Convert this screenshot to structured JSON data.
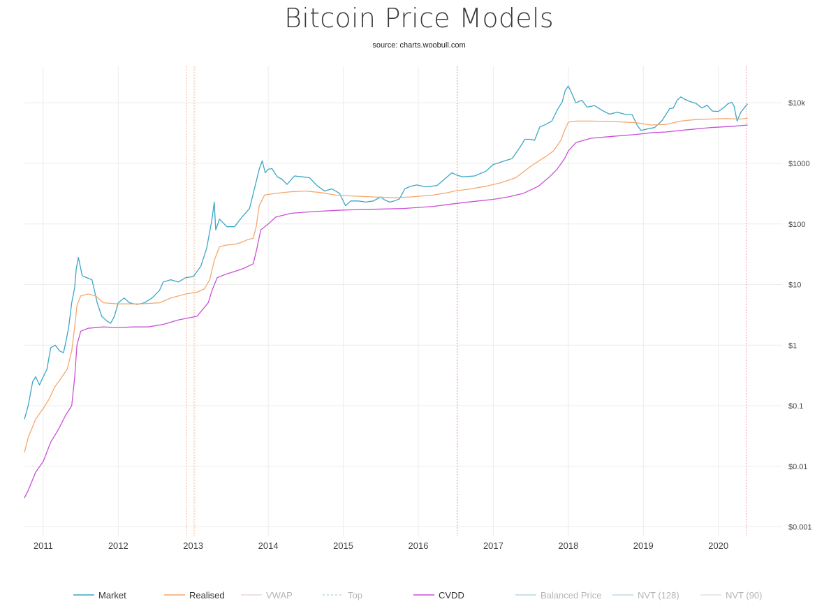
{
  "chart_data": {
    "type": "line",
    "title": "Bitcoin Price Models",
    "subtitle": "source: charts.woobull.com",
    "y_scale": "log",
    "ylim": [
      0.0007,
      40000
    ],
    "xlim": [
      2010.75,
      2020.85
    ],
    "grid": true,
    "legend_position": "bottom",
    "x_ticks": [
      {
        "value": 2011,
        "label": "2011"
      },
      {
        "value": 2012,
        "label": "2012"
      },
      {
        "value": 2013,
        "label": "2013"
      },
      {
        "value": 2014,
        "label": "2014"
      },
      {
        "value": 2015,
        "label": "2015"
      },
      {
        "value": 2016,
        "label": "2016"
      },
      {
        "value": 2017,
        "label": "2017"
      },
      {
        "value": 2018,
        "label": "2018"
      },
      {
        "value": 2019,
        "label": "2019"
      },
      {
        "value": 2020,
        "label": "2020"
      }
    ],
    "y_ticks": [
      {
        "value": 10000,
        "label": "$10k"
      },
      {
        "value": 1000,
        "label": "$1000"
      },
      {
        "value": 100,
        "label": "$100"
      },
      {
        "value": 10,
        "label": "$10"
      },
      {
        "value": 1,
        "label": "$1"
      },
      {
        "value": 0.1,
        "label": "$0.1"
      },
      {
        "value": 0.01,
        "label": "$0.01"
      },
      {
        "value": 0.001,
        "label": "$0.001"
      }
    ],
    "halving_markers": [
      {
        "x": 2012.91,
        "color": "#f5b995"
      },
      {
        "x": 2013.02,
        "color": "#f5c8a8"
      },
      {
        "x": 2016.52,
        "color": "#f08a8a"
      },
      {
        "x": 2020.37,
        "color": "#f0a0b4"
      }
    ],
    "series": [
      {
        "name": "Market",
        "color": "#3aa6c6",
        "style": "solid",
        "visible": true,
        "x": [
          2010.75,
          2010.8,
          2010.86,
          2010.9,
          2010.95,
          2011.0,
          2011.05,
          2011.1,
          2011.16,
          2011.22,
          2011.27,
          2011.3,
          2011.34,
          2011.38,
          2011.42,
          2011.44,
          2011.47,
          2011.52,
          2011.58,
          2011.65,
          2011.72,
          2011.78,
          2011.85,
          2011.9,
          2011.95,
          2012.0,
          2012.08,
          2012.15,
          2012.25,
          2012.35,
          2012.45,
          2012.55,
          2012.6,
          2012.7,
          2012.8,
          2012.9,
          2013.0,
          2013.1,
          2013.18,
          2013.25,
          2013.28,
          2013.3,
          2013.35,
          2013.45,
          2013.55,
          2013.65,
          2013.75,
          2013.82,
          2013.88,
          2013.92,
          2013.96,
          2014.0,
          2014.05,
          2014.12,
          2014.18,
          2014.25,
          2014.35,
          2014.45,
          2014.55,
          2014.65,
          2014.75,
          2014.85,
          2014.95,
          2015.03,
          2015.1,
          2015.2,
          2015.3,
          2015.4,
          2015.5,
          2015.55,
          2015.62,
          2015.68,
          2015.75,
          2015.82,
          2015.9,
          2015.98,
          2016.1,
          2016.25,
          2016.35,
          2016.45,
          2016.5,
          2016.55,
          2016.6,
          2016.75,
          2016.9,
          2017.0,
          2017.05,
          2017.15,
          2017.25,
          2017.35,
          2017.42,
          2017.5,
          2017.55,
          2017.62,
          2017.7,
          2017.78,
          2017.85,
          2017.92,
          2017.96,
          2018.0,
          2018.05,
          2018.1,
          2018.18,
          2018.25,
          2018.35,
          2018.45,
          2018.55,
          2018.65,
          2018.75,
          2018.85,
          2018.92,
          2018.97,
          2019.05,
          2019.15,
          2019.25,
          2019.35,
          2019.4,
          2019.45,
          2019.5,
          2019.55,
          2019.62,
          2019.7,
          2019.78,
          2019.85,
          2019.92,
          2020.0,
          2020.08,
          2020.13,
          2020.18,
          2020.21,
          2020.25,
          2020.3,
          2020.37,
          2020.39
        ],
        "y": [
          0.06,
          0.1,
          0.25,
          0.3,
          0.22,
          0.3,
          0.4,
          0.9,
          1.0,
          0.8,
          0.75,
          1.1,
          2.0,
          5.0,
          9.0,
          18.0,
          28.0,
          14.0,
          13.0,
          12.0,
          5.0,
          3.0,
          2.5,
          2.3,
          3.0,
          5.0,
          6.0,
          5.0,
          4.7,
          5.0,
          6.0,
          8.0,
          11.0,
          12.0,
          11.0,
          13.0,
          13.5,
          20.0,
          40.0,
          120.0,
          230.0,
          80.0,
          120.0,
          90.0,
          90.0,
          130.0,
          180.0,
          400.0,
          800.0,
          1100.0,
          700.0,
          800.0,
          820.0,
          600.0,
          550.0,
          450.0,
          620.0,
          600.0,
          580.0,
          430.0,
          350.0,
          380.0,
          320.0,
          200.0,
          240.0,
          240.0,
          230.0,
          240.0,
          280.0,
          250.0,
          230.0,
          240.0,
          260.0,
          380.0,
          420.0,
          440.0,
          410.0,
          430.0,
          550.0,
          700.0,
          650.0,
          620.0,
          600.0,
          620.0,
          740.0,
          960.0,
          1000.0,
          1100.0,
          1200.0,
          1800.0,
          2500.0,
          2500.0,
          2400.0,
          4000.0,
          4400.0,
          5000.0,
          7500.0,
          10500.0,
          16000.0,
          19000.0,
          14000.0,
          10000.0,
          11000.0,
          8500.0,
          9000.0,
          7500.0,
          6500.0,
          7000.0,
          6500.0,
          6400.0,
          4200.0,
          3500.0,
          3700.0,
          3900.0,
          5100.0,
          8000.0,
          8200.0,
          11000.0,
          12500.0,
          11500.0,
          10500.0,
          9800.0,
          8200.0,
          9100.0,
          7300.0,
          7200.0,
          8500.0,
          9700.0,
          10200.0,
          8800.0,
          5000.0,
          7000.0,
          9000.0,
          9600.0
        ]
      },
      {
        "name": "Realised",
        "color": "#f5a76e",
        "style": "solid",
        "visible": true,
        "x": [
          2010.75,
          2010.8,
          2010.9,
          2011.0,
          2011.08,
          2011.15,
          2011.25,
          2011.32,
          2011.38,
          2011.42,
          2011.45,
          2011.5,
          2011.6,
          2011.7,
          2011.8,
          2012.0,
          2012.3,
          2012.55,
          2012.7,
          2012.9,
          2013.05,
          2013.15,
          2013.22,
          2013.28,
          2013.35,
          2013.45,
          2013.55,
          2013.65,
          2013.72,
          2013.8,
          2013.84,
          2013.88,
          2013.95,
          2014.1,
          2014.3,
          2014.5,
          2014.7,
          2014.9,
          2015.1,
          2015.4,
          2015.7,
          2015.9,
          2016.2,
          2016.4,
          2016.48,
          2016.7,
          2016.9,
          2017.1,
          2017.3,
          2017.5,
          2017.7,
          2017.8,
          2017.9,
          2017.95,
          2018.0,
          2018.1,
          2018.3,
          2018.6,
          2018.9,
          2019.1,
          2019.3,
          2019.5,
          2019.7,
          2019.9,
          2020.1,
          2020.3,
          2020.39
        ],
        "y": [
          0.017,
          0.03,
          0.06,
          0.09,
          0.13,
          0.2,
          0.3,
          0.4,
          0.8,
          2.0,
          4.5,
          6.5,
          7.0,
          6.5,
          5.0,
          4.8,
          4.8,
          5.0,
          6.0,
          7.0,
          7.5,
          8.5,
          12.0,
          25.0,
          42.0,
          45.0,
          46.0,
          50.0,
          55.0,
          58.0,
          90.0,
          200.0,
          300.0,
          320.0,
          340.0,
          350.0,
          330.0,
          300.0,
          290.0,
          280.0,
          270.0,
          280.0,
          300.0,
          330.0,
          350.0,
          380.0,
          420.0,
          480.0,
          580.0,
          900.0,
          1300.0,
          1600.0,
          2400.0,
          3500.0,
          4800.0,
          5000.0,
          5000.0,
          4900.0,
          4700.0,
          4300.0,
          4400.0,
          5000.0,
          5300.0,
          5400.0,
          5500.0,
          5400.0,
          5600.0
        ]
      },
      {
        "name": "VWAP",
        "color": "#eed6d6",
        "style": "solid",
        "visible": false,
        "x": [],
        "y": []
      },
      {
        "name": "Top",
        "color": "#b8dcd4",
        "style": "dashed",
        "visible": false,
        "x": [],
        "y": []
      },
      {
        "name": "CVDD",
        "color": "#c850d6",
        "style": "solid",
        "visible": true,
        "x": [
          2010.75,
          2010.8,
          2010.9,
          2011.0,
          2011.1,
          2011.2,
          2011.3,
          2011.38,
          2011.42,
          2011.45,
          2011.5,
          2011.6,
          2011.8,
          2012.0,
          2012.2,
          2012.4,
          2012.6,
          2012.8,
          2013.05,
          2013.2,
          2013.25,
          2013.32,
          2013.45,
          2013.65,
          2013.8,
          2013.85,
          2013.9,
          2014.0,
          2014.1,
          2014.3,
          2014.6,
          2015.0,
          2015.4,
          2015.8,
          2016.2,
          2016.4,
          2016.6,
          2016.8,
          2017.0,
          2017.2,
          2017.4,
          2017.6,
          2017.75,
          2017.85,
          2017.95,
          2018.0,
          2018.1,
          2018.3,
          2018.6,
          2018.9,
          2019.1,
          2019.3,
          2019.6,
          2019.9,
          2020.2,
          2020.39
        ],
        "y": [
          0.003,
          0.004,
          0.008,
          0.012,
          0.025,
          0.04,
          0.07,
          0.1,
          0.3,
          1.0,
          1.7,
          1.9,
          2.0,
          1.95,
          2.0,
          2.0,
          2.2,
          2.6,
          3.0,
          5.0,
          8.0,
          13.0,
          15.0,
          18.0,
          22.0,
          40.0,
          80.0,
          100.0,
          130.0,
          150.0,
          160.0,
          170.0,
          175.0,
          180.0,
          195.0,
          210.0,
          225.0,
          240.0,
          255.0,
          280.0,
          320.0,
          420.0,
          600.0,
          800.0,
          1200.0,
          1600.0,
          2200.0,
          2600.0,
          2800.0,
          3000.0,
          3200.0,
          3300.0,
          3600.0,
          3900.0,
          4100.0,
          4300.0
        ]
      },
      {
        "name": "Balanced Price",
        "color": "#bcd6dc",
        "style": "solid",
        "visible": false,
        "x": [],
        "y": []
      },
      {
        "name": "NVT (128)",
        "color": "#c4d8e2",
        "style": "solid",
        "visible": false,
        "x": [],
        "y": []
      },
      {
        "name": "NVT (90)",
        "color": "#dce4e8",
        "style": "solid",
        "visible": false,
        "x": [],
        "y": []
      }
    ]
  }
}
